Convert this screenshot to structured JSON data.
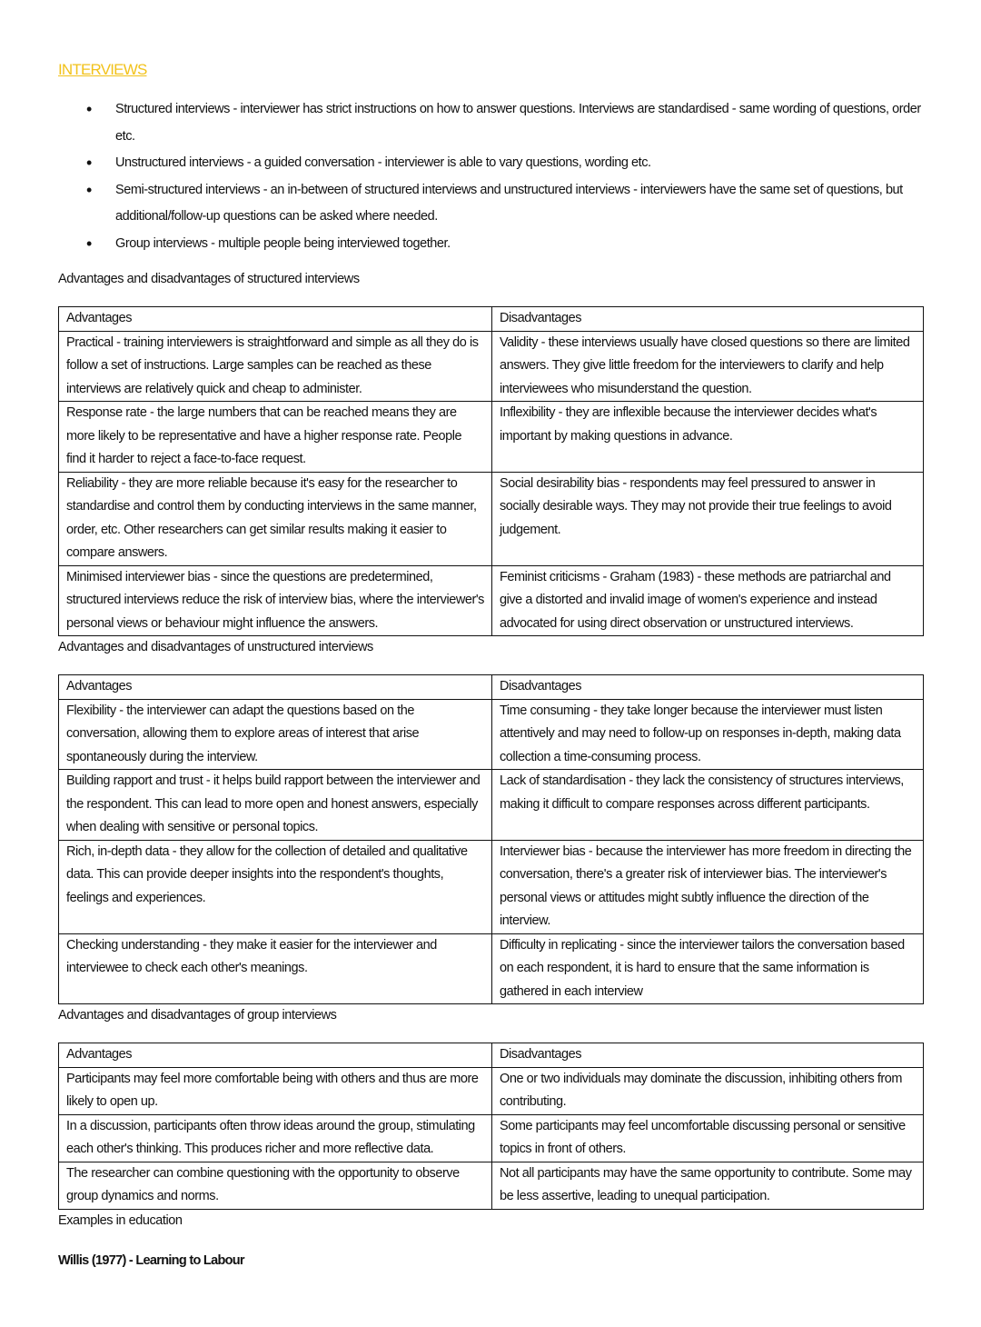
{
  "title": "INTERVIEWS",
  "accent_color": "#f2c21b",
  "bullets": [
    "Structured interviews - interviewer has strict instructions on how to answer questions. Interviews are standardised - same wording of questions, order etc.",
    "Unstructured interviews - a guided conversation - interviewer is able to vary questions, wording etc.",
    "Semi-structured interviews - an in-between of structured interviews and unstructured interviews - interviewers have the same set of questions, but additional/follow-up questions can be asked where needed.",
    "Group interviews - multiple people being interviewed together."
  ],
  "tables": [
    {
      "heading": "Advantages and disadvantages of structured interviews",
      "headers": [
        "Advantages",
        "Disadvantages"
      ],
      "rows": [
        [
          "Practical - training interviewers is straightforward and simple as all they do is follow a set of instructions. Large samples can be reached as these interviews are relatively quick and cheap to administer.",
          "Validity - these interviews usually have closed questions so there are limited answers. They give little freedom for the interviewers to clarify and help interviewees who misunderstand the question."
        ],
        [
          "Response rate - the large numbers that can be reached means they are more likely to be representative and have a higher response rate. People find it harder to reject a face-to-face request.",
          "Inflexibility - they are inflexible because the interviewer decides what's important by making questions in advance."
        ],
        [
          "Reliability - they are more reliable because it's easy for the researcher to standardise and control them by conducting interviews in the same manner, order, etc. Other researchers can get similar results making it easier to compare answers.",
          "Social desirability bias - respondents may feel pressured to answer in socially desirable ways. They may not provide their true feelings to avoid judgement."
        ],
        [
          "Minimised interviewer bias - since the questions are predetermined, structured interviews reduce the risk of interview bias, where the interviewer's personal views or behaviour might influence the answers.",
          "Feminist criticisms - Graham (1983) - these methods are patriarchal and give a distorted and invalid image of women's experience and instead advocated for using direct observation or unstructured interviews."
        ]
      ]
    },
    {
      "heading": "Advantages and disadvantages of unstructured interviews",
      "headers": [
        "Advantages",
        "Disadvantages"
      ],
      "rows": [
        [
          "Flexibility - the interviewer can adapt the questions based on the conversation, allowing them to explore areas of interest that arise spontaneously during the interview.",
          "Time consuming - they take longer because the interviewer must listen attentively and may need to follow-up on responses in-depth, making data collection a time-consuming process."
        ],
        [
          "Building rapport and trust - it helps build rapport between the interviewer and the respondent. This can lead to more open and honest answers, especially when dealing with sensitive or personal topics.",
          "Lack of standardisation - they lack the consistency of structures interviews, making it difficult to compare responses across different participants."
        ],
        [
          "Rich, in-depth data - they allow for the collection of detailed and qualitative data. This can provide deeper insights into the respondent's thoughts, feelings and experiences.",
          "Interviewer bias - because the interviewer has more freedom in directing the conversation, there's a greater risk of interviewer bias. The interviewer's personal views or attitudes might subtly influence the direction of the interview."
        ],
        [
          "Checking understanding - they make it easier for the interviewer and interviewee to check each other's meanings.",
          "Difficulty in replicating - since the interviewer tailors the conversation based on each respondent, it is hard to ensure that the same information is gathered in each interview"
        ]
      ]
    },
    {
      "heading": "Advantages and disadvantages of group interviews",
      "headers": [
        "Advantages",
        "Disadvantages"
      ],
      "rows": [
        [
          "Participants may feel more comfortable being with others and thus are more likely to open up.",
          "One or two individuals may dominate the discussion, inhibiting others from contributing."
        ],
        [
          "In a discussion, participants often throw ideas around the group, stimulating each other's thinking. This produces richer and more reflective data.",
          "Some participants may feel uncomfortable discussing personal or sensitive topics in front of others."
        ],
        [
          "The researcher can combine questioning with the opportunity to observe group dynamics and norms.",
          "Not all participants may have the same opportunity to contribute. Some may be less assertive, leading to unequal participation."
        ]
      ]
    }
  ],
  "examples_heading": "Examples in education",
  "subheading": "Willis (1977) - Learning to Labour"
}
